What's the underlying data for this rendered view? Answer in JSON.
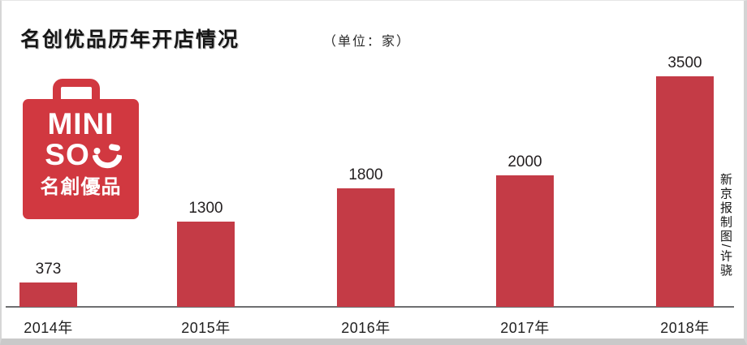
{
  "header": {
    "title": "名创优品历年开店情况",
    "unit_label": "（单位：家）",
    "credit": "新京报制图/许骁"
  },
  "logo": {
    "line1": "MINI",
    "line2": "SO",
    "cjk_name": "名創優品",
    "smiley": "winking-smiley",
    "bag_color": "#d13840",
    "text_color": "#ffffff"
  },
  "chart_data": {
    "type": "bar",
    "title": "名创优品历年开店情况",
    "unit": "家",
    "categories": [
      "2014年",
      "2015年",
      "2016年",
      "2017年",
      "2018年"
    ],
    "values": [
      373,
      1300,
      1800,
      2000,
      3500
    ],
    "ylim": [
      0,
      3500
    ],
    "bar_color": "#c43b46",
    "axis_color": "#6e6f71",
    "grid": false,
    "legend": "none",
    "value_labels": true
  }
}
